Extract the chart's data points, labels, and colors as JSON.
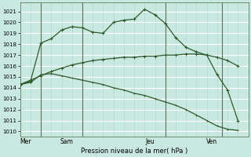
{
  "bg_color": "#d4eee8",
  "grid_color": "#b8ddd8",
  "line_color": "#2d5a2d",
  "xlabel": "Pression niveau de la mer( hPa )",
  "ylim": [
    1009.5,
    1021.8
  ],
  "yticks": [
    1010,
    1011,
    1012,
    1013,
    1014,
    1015,
    1016,
    1017,
    1018,
    1019,
    1020,
    1021
  ],
  "xlim": [
    0,
    22
  ],
  "day_labels": [
    "Mer",
    "Sam",
    "Jeu",
    "Ven"
  ],
  "day_positions": [
    0.5,
    4.5,
    12.5,
    18.5
  ],
  "vline_positions": [
    2,
    6,
    14,
    19.5
  ],
  "s1_x": [
    0,
    1,
    2,
    3,
    4,
    5,
    6,
    7,
    8,
    9,
    10,
    11,
    12,
    13,
    14,
    15,
    16,
    17,
    18,
    19,
    20,
    21
  ],
  "s1_y": [
    1014.3,
    1014.6,
    1018.1,
    1018.5,
    1019.3,
    1019.6,
    1019.5,
    1019.1,
    1019.0,
    1020.0,
    1020.2,
    1020.3,
    1021.2,
    1020.7,
    1019.9,
    1018.6,
    1017.7,
    1017.3,
    1017.0,
    1015.2,
    1013.8,
    1011.0
  ],
  "s2_x": [
    0,
    1,
    2,
    3,
    4,
    5,
    6,
    7,
    8,
    9,
    10,
    11,
    12,
    13,
    14,
    15,
    16,
    17,
    18,
    19,
    20,
    21
  ],
  "s2_y": [
    1014.3,
    1014.7,
    1015.1,
    1015.5,
    1015.8,
    1016.1,
    1016.3,
    1016.5,
    1016.6,
    1016.7,
    1016.8,
    1016.8,
    1016.9,
    1016.9,
    1017.0,
    1017.0,
    1017.1,
    1017.1,
    1017.0,
    1016.8,
    1016.5,
    1016.0
  ],
  "s3_x": [
    0,
    1,
    2,
    3,
    4,
    5,
    6,
    7,
    8,
    9,
    10,
    11,
    12,
    13,
    14,
    15,
    16,
    17,
    18,
    19,
    20,
    21
  ],
  "s3_y": [
    1014.3,
    1014.5,
    1015.2,
    1015.3,
    1015.1,
    1014.9,
    1014.7,
    1014.5,
    1014.3,
    1014.0,
    1013.8,
    1013.5,
    1013.3,
    1013.0,
    1012.7,
    1012.4,
    1012.0,
    1011.5,
    1011.0,
    1010.5,
    1010.2,
    1010.1
  ]
}
